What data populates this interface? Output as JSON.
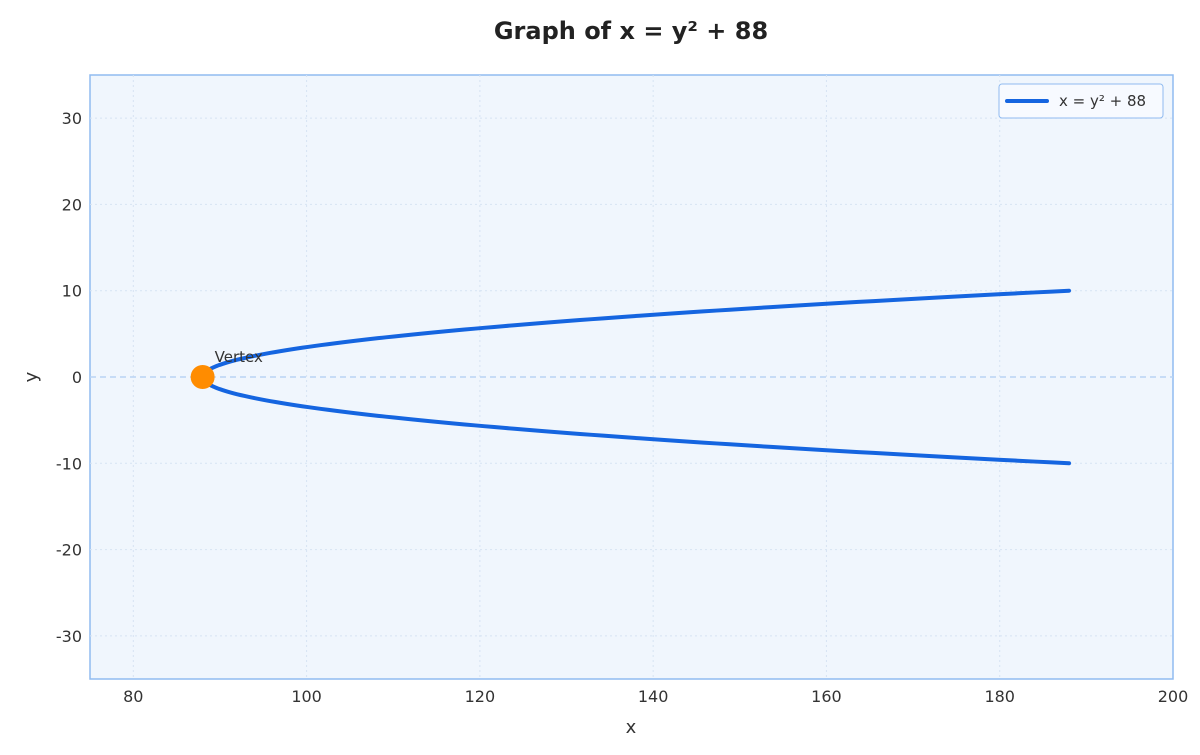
{
  "chart_data": {
    "type": "line",
    "title": "Graph of x = y² + 88",
    "xlabel": "x",
    "ylabel": "y",
    "xlim": [
      75,
      200
    ],
    "ylim": [
      -35,
      35
    ],
    "xticks": [
      80,
      100,
      120,
      140,
      160,
      180,
      200
    ],
    "yticks": [
      30,
      20,
      10,
      0,
      -10,
      -20,
      -30
    ],
    "grid": true,
    "legend_position": "top-right",
    "series": [
      {
        "name": "x = y² + 88",
        "equation": "x = y^2 + 88",
        "y_range": [
          -10,
          10
        ],
        "points": [
          [
            188,
            -10
          ],
          [
            169,
            -9
          ],
          [
            152,
            -8
          ],
          [
            137,
            -7
          ],
          [
            124,
            -6
          ],
          [
            113,
            -5
          ],
          [
            104,
            -4
          ],
          [
            97,
            -3
          ],
          [
            92,
            -2
          ],
          [
            89,
            -1
          ],
          [
            88,
            0
          ],
          [
            89,
            1
          ],
          [
            92,
            2
          ],
          [
            97,
            3
          ],
          [
            104,
            4
          ],
          [
            113,
            5
          ],
          [
            124,
            6
          ],
          [
            137,
            7
          ],
          [
            152,
            8
          ],
          [
            169,
            9
          ],
          [
            188,
            10
          ]
        ]
      }
    ],
    "annotations": [
      {
        "label": "Vertex",
        "x": 88,
        "y": 0
      }
    ],
    "reference_lines": [
      {
        "orientation": "horizontal",
        "y": 0,
        "style": "dashed"
      }
    ],
    "colors": {
      "curve": "#1565e0",
      "vertex": "#ff8c00",
      "plot_background": "#f0f6fd",
      "plot_border": "#90bbf0",
      "grid": "#d6e3f3",
      "zero_line": "#b9d3f3"
    }
  }
}
